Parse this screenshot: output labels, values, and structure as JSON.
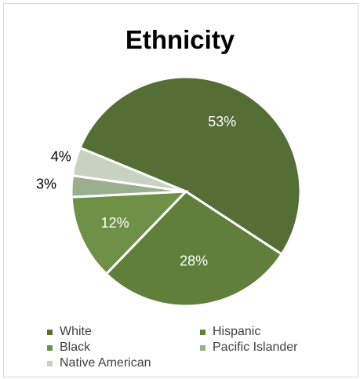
{
  "chart_data": {
    "type": "pie",
    "title": "Ethnicity",
    "categories": [
      "White",
      "Hispanic",
      "Black",
      "Pacific Islander",
      "Native American"
    ],
    "values": [
      53,
      28,
      12,
      3,
      4
    ],
    "labels": [
      "53%",
      "28%",
      "12%",
      "3%",
      "4%"
    ],
    "colors": [
      "#546e35",
      "#5f7f3b",
      "#6f9147",
      "#9ab08c",
      "#c8d2bf"
    ],
    "legend_position": "bottom"
  }
}
